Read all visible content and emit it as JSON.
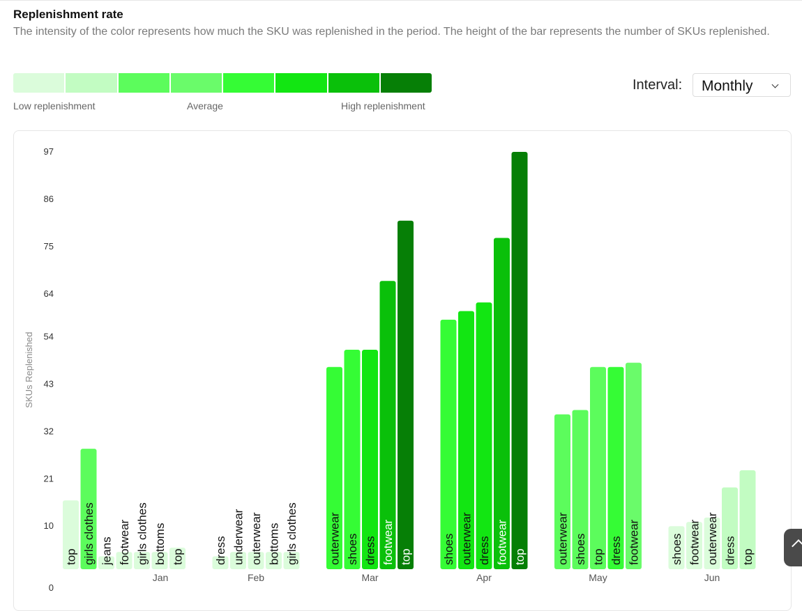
{
  "header": {
    "title": "Replenishment rate",
    "subtitle": "The intensity of the color represents how much the SKU was replenished in the period. The height of the bar represents the number of SKUs replenished."
  },
  "legend": {
    "colors": [
      "#dbfcdb",
      "#c2fcc2",
      "#5cfc5c",
      "#6afb6a",
      "#35fc35",
      "#12e612",
      "#0ac00a",
      "#067f06"
    ],
    "low_label": "Low replenishment",
    "avg_label": "Average",
    "high_label": "High replenishment"
  },
  "interval": {
    "label": "Interval:",
    "value": "Monthly"
  },
  "chart_data": {
    "type": "bar",
    "ylabel": "SKUs Replenished",
    "xlabel": "",
    "ylim": [
      0,
      97
    ],
    "yticks": [
      0,
      10,
      21,
      32,
      43,
      54,
      64,
      75,
      86,
      97
    ],
    "groups": [
      {
        "label": "Jan",
        "bars": [
          {
            "name": "top",
            "value": 16,
            "color": "#dbfcdb"
          },
          {
            "name": "girls clothes",
            "value": 28,
            "color": "#5cfc5c"
          },
          {
            "name": "jeans",
            "value": 3,
            "color": "#dbfcdb"
          },
          {
            "name": "footwear",
            "value": 4,
            "color": "#dbfcdb"
          },
          {
            "name": "girls clothes",
            "value": 4,
            "color": "#dbfcdb"
          },
          {
            "name": "bottoms",
            "value": 4,
            "color": "#dbfcdb"
          },
          {
            "name": "top",
            "value": 5,
            "color": "#dbfcdb"
          }
        ]
      },
      {
        "label": "Feb",
        "bars": [
          {
            "name": "dress",
            "value": 3,
            "color": "#dbfcdb"
          },
          {
            "name": "underwear",
            "value": 4,
            "color": "#dbfcdb"
          },
          {
            "name": "outerwear",
            "value": 4,
            "color": "#dbfcdb"
          },
          {
            "name": "bottoms",
            "value": 4,
            "color": "#dbfcdb"
          },
          {
            "name": "girls clothes",
            "value": 4,
            "color": "#dbfcdb"
          }
        ]
      },
      {
        "label": "Mar",
        "bars": [
          {
            "name": "outerwear",
            "value": 47,
            "color": "#35fc35"
          },
          {
            "name": "shoes",
            "value": 51,
            "color": "#35fc35"
          },
          {
            "name": "dress",
            "value": 51,
            "color": "#12e612"
          },
          {
            "name": "footwear",
            "value": 67,
            "color": "#0ac00a"
          },
          {
            "name": "top",
            "value": 81,
            "color": "#067f06"
          }
        ]
      },
      {
        "label": "Apr",
        "bars": [
          {
            "name": "shoes",
            "value": 58,
            "color": "#35fc35"
          },
          {
            "name": "outerwear",
            "value": 60,
            "color": "#12e612"
          },
          {
            "name": "dress",
            "value": 62,
            "color": "#12e612"
          },
          {
            "name": "footwear",
            "value": 77,
            "color": "#0ac00a"
          },
          {
            "name": "top",
            "value": 97,
            "color": "#067f06"
          }
        ]
      },
      {
        "label": "May",
        "bars": [
          {
            "name": "outerwear",
            "value": 36,
            "color": "#5cfc5c"
          },
          {
            "name": "shoes",
            "value": 37,
            "color": "#5cfc5c"
          },
          {
            "name": "top",
            "value": 47,
            "color": "#5cfc5c"
          },
          {
            "name": "dress",
            "value": 47,
            "color": "#35fc35"
          },
          {
            "name": "footwear",
            "value": 48,
            "color": "#6afb6a"
          }
        ]
      },
      {
        "label": "Jun",
        "bars": [
          {
            "name": "shoes",
            "value": 10,
            "color": "#dbfcdb"
          },
          {
            "name": "footwear",
            "value": 11,
            "color": "#dbfcdb"
          },
          {
            "name": "outerwear",
            "value": 12,
            "color": "#dbfcdb"
          },
          {
            "name": "dress",
            "value": 19,
            "color": "#c2fcc2"
          },
          {
            "name": "top",
            "value": 23,
            "color": "#c2fcc2"
          }
        ]
      }
    ]
  }
}
